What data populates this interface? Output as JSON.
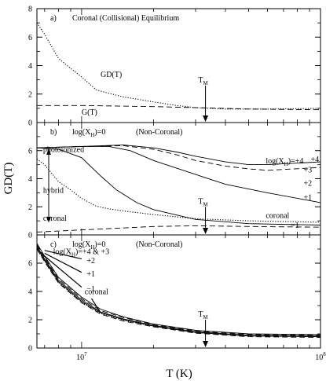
{
  "chart_data": {
    "type": "line",
    "ylabel": "GD(T)",
    "xlabel": "T (K)",
    "xscale": "log",
    "xlim": [
      6500000,
      100000000
    ],
    "x_ticklabels": [
      {
        "value": 10000000,
        "base": "10",
        "exp": "7"
      },
      {
        "value": 100000000,
        "base": "10",
        "exp": "8"
      }
    ],
    "grid": false,
    "T_M": {
      "value": 33000000,
      "label_main": "T",
      "label_sub": "M"
    },
    "panels": [
      {
        "id": "a",
        "label": "a)",
        "title": "Coronal (Collisional) Equilibrium",
        "ylim": [
          0,
          8
        ],
        "yticks": [
          0,
          2,
          4,
          6,
          8
        ],
        "series": [
          {
            "name": "GD(T)",
            "style": "dotted",
            "points": [
              [
                6500000.0,
                7.0
              ],
              [
                7000000.0,
                6.2
              ],
              [
                8000000.0,
                4.5
              ],
              [
                9000000.0,
                3.8
              ],
              [
                10000000.0,
                3.2
              ],
              [
                11500000.0,
                2.3
              ],
              [
                13000000.0,
                2.05
              ],
              [
                15000000.0,
                1.8
              ],
              [
                20000000.0,
                1.45
              ],
              [
                25000000.0,
                1.2
              ],
              [
                30000000.0,
                1.05
              ],
              [
                40000000.0,
                0.95
              ],
              [
                60000000.0,
                0.95
              ],
              [
                100000000.0,
                1.0
              ]
            ]
          },
          {
            "name": "G(T)",
            "style": "dashed",
            "points": [
              [
                6500000.0,
                1.2
              ],
              [
                10000000.0,
                1.2
              ],
              [
                20000000.0,
                1.12
              ],
              [
                30000000.0,
                1.05
              ],
              [
                50000000.0,
                0.95
              ],
              [
                100000000.0,
                0.9
              ]
            ]
          }
        ],
        "annotations": [
          {
            "text": "GD(T)",
            "x": 12000000.0,
            "y": 3.2
          },
          {
            "text": "G(T)",
            "x": 10000000.0,
            "y": 0.55
          }
        ]
      },
      {
        "id": "b",
        "label": "b)",
        "title_main": "log(X",
        "title_sub": "H",
        "title_tail": ")=0",
        "title_right": "(Non-Coronal)",
        "ylim": [
          0,
          8
        ],
        "yticks": [
          0,
          2,
          4,
          6
        ],
        "series": [
          {
            "name": "+4",
            "style": "solid",
            "points": [
              [
                6500000.0,
                6.2
              ],
              [
                10000000.0,
                6.3
              ],
              [
                15000000.0,
                6.4
              ],
              [
                20000000.0,
                6.2
              ],
              [
                25000000.0,
                5.9
              ],
              [
                30000000.0,
                5.6
              ],
              [
                40000000.0,
                5.2
              ],
              [
                50000000.0,
                5.0
              ],
              [
                60000000.0,
                5.0
              ],
              [
                100000000.0,
                5.2
              ]
            ]
          },
          {
            "name": "+3",
            "style": "dashed",
            "points": [
              [
                6500000.0,
                6.2
              ],
              [
                10000000.0,
                6.3
              ],
              [
                15000000.0,
                6.35
              ],
              [
                20000000.0,
                6.1
              ],
              [
                25000000.0,
                5.7
              ],
              [
                30000000.0,
                5.3
              ],
              [
                40000000.0,
                4.9
              ],
              [
                50000000.0,
                4.7
              ],
              [
                60000000.0,
                4.6
              ],
              [
                100000000.0,
                4.8
              ]
            ]
          },
          {
            "name": "+2",
            "style": "solid",
            "points": [
              [
                6500000.0,
                6.2
              ],
              [
                10000000.0,
                6.3
              ],
              [
                13000000.0,
                6.3
              ],
              [
                16000000.0,
                6.0
              ],
              [
                20000000.0,
                5.3
              ],
              [
                30000000.0,
                4.3
              ],
              [
                40000000.0,
                3.6
              ],
              [
                60000000.0,
                3.0
              ],
              [
                100000000.0,
                2.3
              ]
            ]
          },
          {
            "name": "+1",
            "style": "solid",
            "points": [
              [
                6500000.0,
                6.2
              ],
              [
                8000000.0,
                6.1
              ],
              [
                10000000.0,
                5.5
              ],
              [
                12000000.0,
                4.2
              ],
              [
                14000000.0,
                3.2
              ],
              [
                17000000.0,
                2.3
              ],
              [
                20000000.0,
                1.8
              ],
              [
                30000000.0,
                1.1
              ],
              [
                50000000.0,
                0.8
              ],
              [
                100000000.0,
                0.7
              ]
            ]
          },
          {
            "name": "coronal",
            "style": "dotted",
            "points": [
              [
                6500000.0,
                5.4
              ],
              [
                7000000.0,
                5.0
              ],
              [
                8000000.0,
                3.8
              ],
              [
                9000000.0,
                3.2
              ],
              [
                10000000.0,
                2.6
              ],
              [
                11500000.0,
                2.05
              ],
              [
                13000000.0,
                1.85
              ],
              [
                15000000.0,
                1.7
              ],
              [
                20000000.0,
                1.45
              ],
              [
                30000000.0,
                1.15
              ],
              [
                50000000.0,
                1.0
              ],
              [
                100000000.0,
                0.9
              ]
            ]
          },
          {
            "name": "-1",
            "style": "dashed",
            "points": [
              [
                6500000.0,
                0.2
              ],
              [
                10000000.0,
                0.35
              ],
              [
                20000000.0,
                0.6
              ],
              [
                30000000.0,
                0.65
              ],
              [
                50000000.0,
                0.6
              ],
              [
                100000000.0,
                0.55
              ]
            ]
          }
        ],
        "annotations": [
          {
            "text": "photoionized",
            "x": 6900000.0,
            "y": 5.9
          },
          {
            "text": "hybrid",
            "x": 6900000.0,
            "y": 3.0
          },
          {
            "text": "coronal",
            "x": 6900000.0,
            "y": 1.0
          },
          {
            "text": "coronal",
            "x": 59000000.0,
            "y": 1.2
          },
          {
            "text": "−1",
            "x": 75000000.0,
            "y": 0.5
          },
          {
            "text": "+4",
            "x": 91000000.0,
            "y": 5.2
          },
          {
            "text": "+3",
            "x": 85000000.0,
            "y": 4.45
          },
          {
            "text": "+2",
            "x": 85000000.0,
            "y": 3.5
          },
          {
            "text": "+1",
            "x": 85000000.0,
            "y": 2.5
          }
        ],
        "series_label": {
          "main": "log(X",
          "sub": "H",
          "tail": ")=+4",
          "x": 59000000.0,
          "y": 5.1
        }
      },
      {
        "id": "c",
        "label": "c)",
        "title_main": "log(X",
        "title_sub": "H",
        "title_tail": ")=0",
        "title_right": "(Non-Coronal)",
        "ylim": [
          0,
          8
        ],
        "yticks": [
          0,
          2,
          4,
          6
        ],
        "series": [
          {
            "name": "+4",
            "style": "solid",
            "points": [
              [
                6500000.0,
                7.4
              ],
              [
                7000000.0,
                6.5
              ],
              [
                8000000.0,
                5.0
              ],
              [
                10000000.0,
                3.6
              ],
              [
                12000000.0,
                2.75
              ],
              [
                15000000.0,
                2.2
              ],
              [
                20000000.0,
                1.7
              ],
              [
                30000000.0,
                1.25
              ],
              [
                50000000.0,
                1.0
              ],
              [
                100000000.0,
                0.95
              ]
            ]
          },
          {
            "name": "+3",
            "style": "dashed",
            "points": [
              [
                6500000.0,
                7.3
              ],
              [
                7000000.0,
                6.4
              ],
              [
                8000000.0,
                4.9
              ],
              [
                10000000.0,
                3.5
              ],
              [
                12000000.0,
                2.65
              ],
              [
                15000000.0,
                2.15
              ],
              [
                20000000.0,
                1.65
              ],
              [
                30000000.0,
                1.2
              ],
              [
                50000000.0,
                0.95
              ],
              [
                100000000.0,
                0.9
              ]
            ]
          },
          {
            "name": "+2",
            "style": "solid",
            "points": [
              [
                6500000.0,
                7.2
              ],
              [
                7000000.0,
                6.3
              ],
              [
                8000000.0,
                4.8
              ],
              [
                10000000.0,
                3.4
              ],
              [
                12000000.0,
                2.55
              ],
              [
                15000000.0,
                2.05
              ],
              [
                20000000.0,
                1.6
              ],
              [
                30000000.0,
                1.15
              ],
              [
                50000000.0,
                0.9
              ],
              [
                100000000.0,
                0.85
              ]
            ]
          },
          {
            "name": "+1",
            "style": "solid",
            "points": [
              [
                6500000.0,
                7.1
              ],
              [
                7000000.0,
                6.2
              ],
              [
                8000000.0,
                4.7
              ],
              [
                10000000.0,
                3.3
              ],
              [
                12000000.0,
                2.5
              ],
              [
                15000000.0,
                2.0
              ],
              [
                20000000.0,
                1.55
              ],
              [
                30000000.0,
                1.1
              ],
              [
                50000000.0,
                0.85
              ],
              [
                100000000.0,
                0.8
              ]
            ]
          },
          {
            "name": "-1",
            "style": "dashed",
            "points": [
              [
                6500000.0,
                7.0
              ],
              [
                7000000.0,
                6.1
              ],
              [
                8000000.0,
                4.6
              ],
              [
                10000000.0,
                3.2
              ],
              [
                12000000.0,
                2.4
              ],
              [
                15000000.0,
                1.9
              ],
              [
                20000000.0,
                1.5
              ],
              [
                30000000.0,
                1.05
              ],
              [
                50000000.0,
                0.8
              ],
              [
                100000000.0,
                0.75
              ]
            ]
          },
          {
            "name": "coronal",
            "style": "dotted",
            "points": [
              [
                6500000.0,
                7.0
              ],
              [
                7000000.0,
                6.15
              ],
              [
                8000000.0,
                4.65
              ],
              [
                10000000.0,
                3.25
              ],
              [
                12000000.0,
                2.45
              ],
              [
                15000000.0,
                1.95
              ],
              [
                20000000.0,
                1.55
              ],
              [
                30000000.0,
                1.1
              ],
              [
                50000000.0,
                0.85
              ],
              [
                100000000.0,
                0.8
              ]
            ]
          }
        ],
        "annotations": [
          {
            "text": "+2",
            "x": 10500000.0,
            "y": 6.0
          },
          {
            "text": "+1",
            "x": 10500000.0,
            "y": 5.05
          },
          {
            "text": "−1",
            "x": 10500000.0,
            "y": 4.0
          },
          {
            "text": "coronal",
            "x": 10300000.0,
            "y": 3.8
          }
        ],
        "series_label": {
          "main": "log(X",
          "sub": "H",
          "tail": ")=+4 & +3",
          "x": 7600000.0,
          "y": 6.65
        }
      }
    ]
  }
}
